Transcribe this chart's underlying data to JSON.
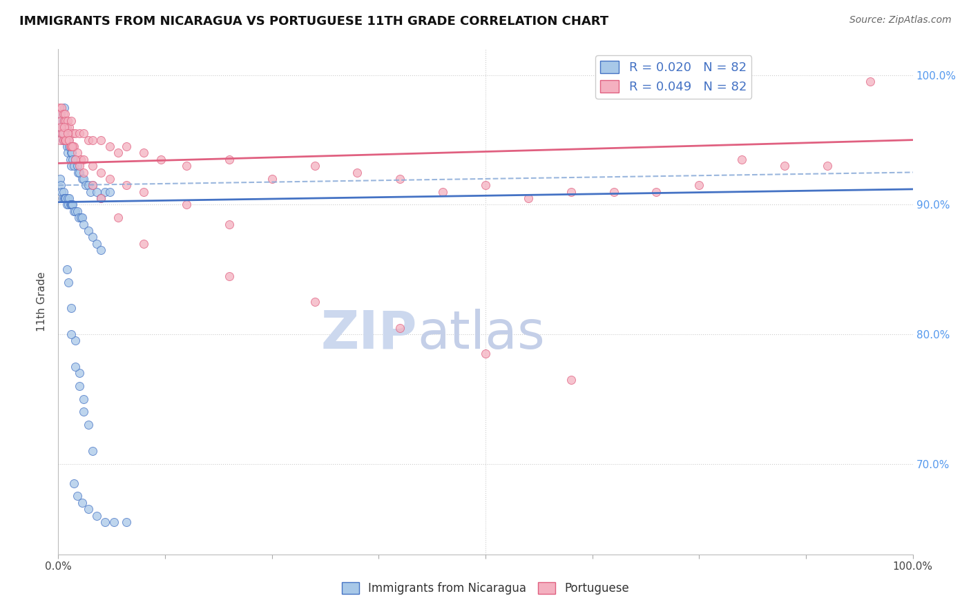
{
  "title": "IMMIGRANTS FROM NICARAGUA VS PORTUGUESE 11TH GRADE CORRELATION CHART",
  "source_text": "Source: ZipAtlas.com",
  "ylabel": "11th Grade",
  "legend_r1": "R = 0.020",
  "legend_n1": "N = 82",
  "legend_r2": "R = 0.049",
  "legend_n2": "N = 82",
  "legend_label1": "Immigrants from Nicaragua",
  "legend_label2": "Portuguese",
  "blue_color": "#a8c8e8",
  "pink_color": "#f4b0c0",
  "trend_blue": "#4472c4",
  "trend_pink": "#e06080",
  "dashed_color": "#88aad8",
  "right_axis_color": "#5599ee",
  "title_color": "#111111",
  "title_fontsize": 13,
  "source_fontsize": 10,
  "blue_scatter_x": [
    0.2,
    0.3,
    0.4,
    0.5,
    0.5,
    0.6,
    0.7,
    0.7,
    0.8,
    0.9,
    1.0,
    1.0,
    1.1,
    1.2,
    1.3,
    1.4,
    1.5,
    1.5,
    1.6,
    1.7,
    1.8,
    2.0,
    2.2,
    2.3,
    2.5,
    2.8,
    3.0,
    3.2,
    3.5,
    3.8,
    4.0,
    4.5,
    5.0,
    5.5,
    6.0,
    0.2,
    0.3,
    0.4,
    0.5,
    0.6,
    0.7,
    0.8,
    0.9,
    1.0,
    1.1,
    1.2,
    1.3,
    1.4,
    1.5,
    1.6,
    1.7,
    1.8,
    2.0,
    2.2,
    2.4,
    2.6,
    2.8,
    3.0,
    3.5,
    4.0,
    4.5,
    5.0,
    1.0,
    1.2,
    1.5,
    2.0,
    2.5,
    3.0,
    3.5,
    4.0,
    1.5,
    2.0,
    2.5,
    3.0,
    1.8,
    2.2,
    2.8,
    3.5,
    4.5,
    5.5,
    6.5,
    8.0
  ],
  "blue_scatter_y": [
    96.5,
    97.0,
    95.5,
    96.0,
    95.0,
    96.5,
    95.5,
    97.5,
    95.0,
    96.0,
    94.5,
    95.5,
    94.0,
    95.0,
    94.5,
    93.5,
    94.0,
    93.0,
    94.0,
    93.5,
    93.0,
    93.5,
    93.0,
    92.5,
    92.5,
    92.0,
    92.0,
    91.5,
    91.5,
    91.0,
    91.5,
    91.0,
    90.5,
    91.0,
    91.0,
    92.0,
    91.5,
    91.0,
    90.5,
    91.0,
    90.5,
    90.5,
    90.5,
    90.0,
    90.5,
    90.0,
    90.5,
    90.0,
    90.0,
    90.0,
    90.0,
    89.5,
    89.5,
    89.5,
    89.0,
    89.0,
    89.0,
    88.5,
    88.0,
    87.5,
    87.0,
    86.5,
    85.0,
    84.0,
    82.0,
    79.5,
    77.0,
    75.0,
    73.0,
    71.0,
    80.0,
    77.5,
    76.0,
    74.0,
    68.5,
    67.5,
    67.0,
    66.5,
    66.0,
    65.5,
    65.5,
    65.5
  ],
  "pink_scatter_x": [
    0.1,
    0.2,
    0.3,
    0.4,
    0.5,
    0.6,
    0.7,
    0.8,
    0.9,
    1.0,
    1.1,
    1.2,
    1.3,
    1.5,
    1.7,
    2.0,
    2.5,
    3.0,
    3.5,
    4.0,
    5.0,
    6.0,
    7.0,
    8.0,
    10.0,
    12.0,
    15.0,
    20.0,
    25.0,
    30.0,
    35.0,
    40.0,
    45.0,
    50.0,
    55.0,
    60.0,
    65.0,
    70.0,
    75.0,
    80.0,
    85.0,
    90.0,
    95.0,
    0.2,
    0.4,
    0.6,
    0.8,
    1.0,
    1.2,
    1.4,
    1.6,
    1.8,
    2.2,
    2.6,
    3.0,
    4.0,
    5.0,
    6.0,
    8.0,
    10.0,
    15.0,
    20.0,
    0.3,
    0.5,
    0.7,
    0.9,
    1.1,
    1.3,
    1.5,
    1.7,
    2.0,
    2.5,
    3.0,
    4.0,
    5.0,
    7.0,
    10.0,
    20.0,
    30.0,
    40.0,
    50.0,
    60.0
  ],
  "pink_scatter_y": [
    97.5,
    97.0,
    96.5,
    97.5,
    96.0,
    97.0,
    96.5,
    97.0,
    96.5,
    96.0,
    96.5,
    95.5,
    96.0,
    96.5,
    95.5,
    95.5,
    95.5,
    95.5,
    95.0,
    95.0,
    95.0,
    94.5,
    94.0,
    94.5,
    94.0,
    93.5,
    93.0,
    93.5,
    92.0,
    93.0,
    92.5,
    92.0,
    91.0,
    91.5,
    90.5,
    91.0,
    91.0,
    91.0,
    91.5,
    93.5,
    93.0,
    93.0,
    99.5,
    95.0,
    95.5,
    95.0,
    95.0,
    95.0,
    95.0,
    94.5,
    94.5,
    94.5,
    94.0,
    93.5,
    93.5,
    93.0,
    92.5,
    92.0,
    91.5,
    91.0,
    90.0,
    88.5,
    96.0,
    95.5,
    96.0,
    95.0,
    95.5,
    95.0,
    94.5,
    94.5,
    93.5,
    93.0,
    92.5,
    91.5,
    90.5,
    89.0,
    87.0,
    84.5,
    82.5,
    80.5,
    78.5,
    76.5
  ],
  "blue_trend_x0": 0,
  "blue_trend_x1": 100,
  "blue_trend_y0": 90.2,
  "blue_trend_y1": 91.2,
  "pink_trend_x0": 0,
  "pink_trend_x1": 100,
  "pink_trend_y0": 93.2,
  "pink_trend_y1": 95.0,
  "dashed_trend_y0": 91.5,
  "dashed_trend_y1": 92.5,
  "xlim": [
    0,
    100
  ],
  "ylim": [
    63,
    102
  ],
  "yticks": [
    70,
    80,
    90,
    100
  ],
  "ytick_labels": [
    "70.0%",
    "80.0%",
    "90.0%",
    "100.0%"
  ]
}
